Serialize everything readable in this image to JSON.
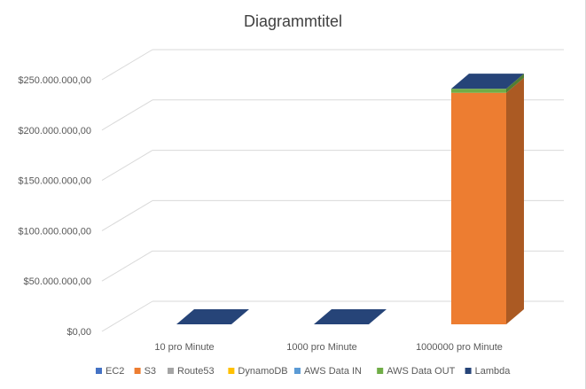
{
  "chart_data": {
    "type": "bar",
    "title": "Diagrammtitel",
    "xlabel": "",
    "ylabel": "",
    "stacked": true,
    "three_d": true,
    "categories": [
      "10 pro Minute",
      "1000 pro Minute",
      "1000000 pro Minute"
    ],
    "ylim": [
      0,
      250000000
    ],
    "y_ticks": [
      0,
      50000000,
      100000000,
      150000000,
      200000000,
      250000000
    ],
    "y_tick_labels": [
      "$0,00",
      "$50.000.000,00",
      "$100.000.000,00",
      "$150.000.000,00",
      "$200.000.000,00",
      "$250.000.000,00"
    ],
    "grid": true,
    "legend_position": "bottom",
    "series": [
      {
        "name": "EC2",
        "color": "#4472C4",
        "values": [
          0,
          0,
          0
        ]
      },
      {
        "name": "S3",
        "color": "#ED7D31",
        "values": [
          0,
          0,
          230000000
        ]
      },
      {
        "name": "Route53",
        "color": "#A5A5A5",
        "values": [
          0,
          0,
          0
        ]
      },
      {
        "name": "DynamoDB",
        "color": "#FFC000",
        "values": [
          0,
          0,
          0
        ]
      },
      {
        "name": "AWS Data IN",
        "color": "#5B9BD5",
        "values": [
          0,
          0,
          0
        ]
      },
      {
        "name": "AWS Data OUT",
        "color": "#70AD47",
        "values": [
          0,
          0,
          4000000
        ]
      },
      {
        "name": "Lambda",
        "color": "#264478",
        "values": [
          0,
          0,
          0
        ]
      }
    ]
  }
}
